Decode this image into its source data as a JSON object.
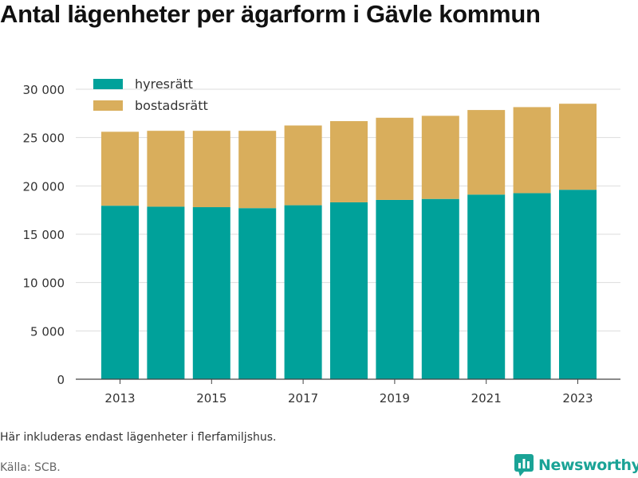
{
  "chart_data": {
    "type": "bar",
    "stacked": true,
    "title": "Antal lägenheter per ägarform i Gävle kommun",
    "categories": [
      "2013",
      "2014",
      "2015",
      "2016",
      "2017",
      "2018",
      "2019",
      "2020",
      "2021",
      "2022",
      "2023"
    ],
    "x_tick_labels": [
      "2013",
      "2015",
      "2017",
      "2019",
      "2021",
      "2023"
    ],
    "series": [
      {
        "name": "hyresrätt",
        "color": "#00a19a",
        "values": [
          17950,
          17850,
          17800,
          17700,
          18000,
          18300,
          18550,
          18650,
          19100,
          19250,
          19600
        ]
      },
      {
        "name": "bostadsrätt",
        "color": "#d9ae5c",
        "values": [
          7650,
          7850,
          7900,
          8000,
          8250,
          8400,
          8500,
          8600,
          8750,
          8900,
          8900
        ]
      }
    ],
    "ylim": [
      0,
      30000
    ],
    "y_ticks": [
      0,
      5000,
      10000,
      15000,
      20000,
      25000,
      30000
    ],
    "y_tick_labels": [
      "0",
      "5 000",
      "10 000",
      "15 000",
      "20 000",
      "25 000",
      "30 000"
    ],
    "xlabel": "",
    "ylabel": "",
    "grid": true,
    "legend_position": "top-left"
  },
  "note": "Här inkluderas endast lägenheter i flerfamiljshus.",
  "source": "Källa: SCB.",
  "brand": {
    "name": "Newsworthy",
    "icon": "bar-chart-speech-bubble-icon",
    "color": "#1aa396"
  }
}
